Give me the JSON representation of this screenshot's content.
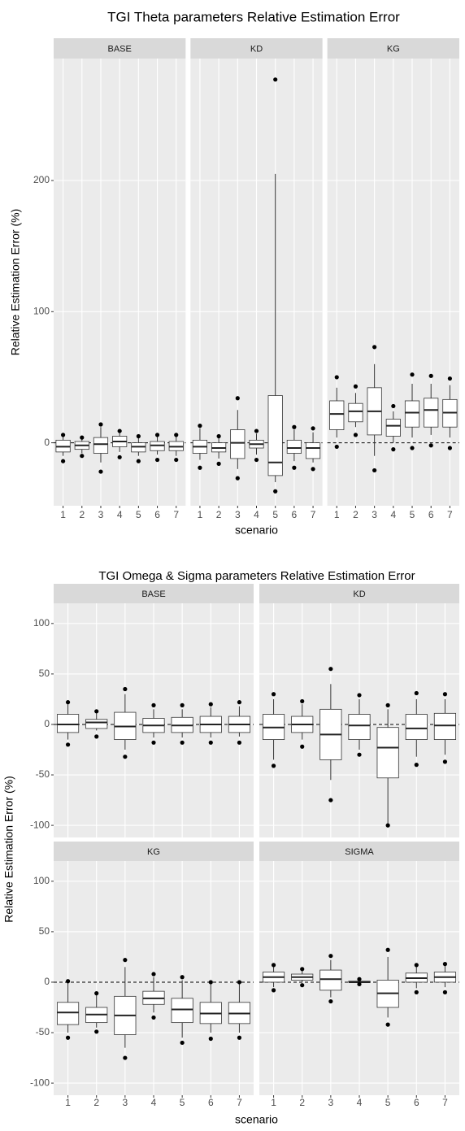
{
  "chart_data": [
    {
      "type": "boxplot",
      "title": "TGI Theta parameters Relative Estimation Error",
      "x_label": "scenario",
      "y_label": "Relative Estimation Error (%)",
      "categories": [
        "1",
        "2",
        "3",
        "4",
        "5",
        "6",
        "7"
      ],
      "ylim": [
        -48,
        293
      ],
      "yticks": [
        0,
        100,
        200
      ],
      "reference_line": 0,
      "grid": true,
      "facets": [
        {
          "name": "BASE",
          "boxes": [
            {
              "low": -10,
              "q1": -7,
              "median": -3,
              "q3": 2,
              "high": 5,
              "points": [
                -14,
                6
              ]
            },
            {
              "low": -8,
              "q1": -5,
              "median": -2,
              "q3": 1,
              "high": 3,
              "points": [
                -10,
                4
              ]
            },
            {
              "low": -15,
              "q1": -8,
              "median": -1,
              "q3": 4,
              "high": 12,
              "points": [
                -22,
                14
              ]
            },
            {
              "low": -7,
              "q1": -3,
              "median": 1,
              "q3": 5,
              "high": 8,
              "points": [
                -11,
                9
              ]
            },
            {
              "low": -10,
              "q1": -7,
              "median": -3,
              "q3": 0,
              "high": 4,
              "points": [
                -14,
                5
              ]
            },
            {
              "low": -9,
              "q1": -6,
              "median": -2,
              "q3": 1,
              "high": 5,
              "points": [
                -13,
                6
              ]
            },
            {
              "low": -10,
              "q1": -6,
              "median": -3,
              "q3": 1,
              "high": 5,
              "points": [
                -13,
                6
              ]
            }
          ]
        },
        {
          "name": "KD",
          "boxes": [
            {
              "low": -13,
              "q1": -8,
              "median": -3,
              "q3": 2,
              "high": 11,
              "points": [
                -19,
                13
              ]
            },
            {
              "low": -12,
              "q1": -7,
              "median": -4,
              "q3": 0,
              "high": 4,
              "points": [
                -16,
                5
              ]
            },
            {
              "low": -20,
              "q1": -12,
              "median": 0,
              "q3": 10,
              "high": 25,
              "points": [
                -27,
                34
              ]
            },
            {
              "low": -9,
              "q1": -4,
              "median": -1,
              "q3": 2,
              "high": 7,
              "points": [
                -13,
                9
              ]
            },
            {
              "low": -30,
              "q1": -25,
              "median": -15,
              "q3": 36,
              "high": 205,
              "points": [
                -37,
                277
              ]
            },
            {
              "low": -14,
              "q1": -8,
              "median": -4,
              "q3": 2,
              "high": 10,
              "points": [
                -19,
                12
              ]
            },
            {
              "low": -15,
              "q1": -12,
              "median": -4,
              "q3": 0,
              "high": 8,
              "points": [
                -20,
                11
              ]
            }
          ]
        },
        {
          "name": "KG",
          "boxes": [
            {
              "low": 4,
              "q1": 10,
              "median": 22,
              "q3": 32,
              "high": 42,
              "points": [
                -3,
                50
              ]
            },
            {
              "low": 12,
              "q1": 16,
              "median": 24,
              "q3": 30,
              "high": 38,
              "points": [
                6,
                43
              ]
            },
            {
              "low": -10,
              "q1": 6,
              "median": 24,
              "q3": 42,
              "high": 60,
              "points": [
                -21,
                73
              ]
            },
            {
              "low": 0,
              "q1": 5,
              "median": 13,
              "q3": 18,
              "high": 24,
              "points": [
                -5,
                28
              ]
            },
            {
              "low": 4,
              "q1": 12,
              "median": 23,
              "q3": 32,
              "high": 45,
              "points": [
                -4,
                52
              ]
            },
            {
              "low": 6,
              "q1": 12,
              "median": 25,
              "q3": 34,
              "high": 45,
              "points": [
                -2,
                51
              ]
            },
            {
              "low": 4,
              "q1": 12,
              "median": 23,
              "q3": 33,
              "high": 44,
              "points": [
                -4,
                49
              ]
            }
          ]
        }
      ]
    },
    {
      "type": "boxplot",
      "title": "TGI Omega & Sigma parameters Relative Estimation Error",
      "x_label": "scenario",
      "y_label": "Relative Estimation Error (%)",
      "categories": [
        "1",
        "2",
        "3",
        "4",
        "5",
        "6",
        "7"
      ],
      "ylim": [
        -112,
        120
      ],
      "yticks": [
        -100,
        -50,
        0,
        50,
        100
      ],
      "reference_line": 0,
      "grid": true,
      "facets": [
        {
          "name": "BASE",
          "boxes": [
            {
              "low": -15,
              "q1": -8,
              "median": 0,
              "q3": 10,
              "high": 20,
              "points": [
                -20,
                22
              ]
            },
            {
              "low": -6,
              "q1": -4,
              "median": 2,
              "q3": 5,
              "high": 12,
              "points": [
                -12,
                13
              ]
            },
            {
              "low": -25,
              "q1": -15,
              "median": -2,
              "q3": 12,
              "high": 30,
              "points": [
                -32,
                35
              ]
            },
            {
              "low": -13,
              "q1": -8,
              "median": -1,
              "q3": 6,
              "high": 15,
              "points": [
                -18,
                19
              ]
            },
            {
              "low": -13,
              "q1": -8,
              "median": -1,
              "q3": 7,
              "high": 15,
              "points": [
                -18,
                19
              ]
            },
            {
              "low": -13,
              "q1": -8,
              "median": 0,
              "q3": 8,
              "high": 17,
              "points": [
                -18,
                20
              ]
            },
            {
              "low": -12,
              "q1": -8,
              "median": 0,
              "q3": 8,
              "high": 18,
              "points": [
                -18,
                22
              ]
            }
          ]
        },
        {
          "name": "KD",
          "boxes": [
            {
              "low": -35,
              "q1": -15,
              "median": -3,
              "q3": 10,
              "high": 25,
              "points": [
                -41,
                30
              ]
            },
            {
              "low": -15,
              "q1": -8,
              "median": 0,
              "q3": 8,
              "high": 20,
              "points": [
                -22,
                23
              ]
            },
            {
              "low": -55,
              "q1": -35,
              "median": -10,
              "q3": 15,
              "high": 40,
              "points": [
                -75,
                55
              ]
            },
            {
              "low": -25,
              "q1": -15,
              "median": -1,
              "q3": 10,
              "high": 25,
              "points": [
                -30,
                29
              ]
            },
            {
              "low": -100,
              "q1": -53,
              "median": -23,
              "q3": -3,
              "high": 15,
              "points": [
                -100,
                19
              ]
            },
            {
              "low": -32,
              "q1": -15,
              "median": -4,
              "q3": 10,
              "high": 25,
              "points": [
                -40,
                31
              ]
            },
            {
              "low": -30,
              "q1": -15,
              "median": -1,
              "q3": 11,
              "high": 25,
              "points": [
                -37,
                30
              ]
            }
          ]
        },
        {
          "name": "KG",
          "boxes": [
            {
              "low": -50,
              "q1": -42,
              "median": -30,
              "q3": -20,
              "high": 0,
              "points": [
                -55,
                1
              ]
            },
            {
              "low": -45,
              "q1": -40,
              "median": -32,
              "q3": -25,
              "high": -12,
              "points": [
                -49,
                -11
              ]
            },
            {
              "low": -65,
              "q1": -52,
              "median": -33,
              "q3": -14,
              "high": 15,
              "points": [
                -75,
                22
              ]
            },
            {
              "low": -30,
              "q1": -22,
              "median": -16,
              "q3": -9,
              "high": 5,
              "points": [
                -35,
                8
              ]
            },
            {
              "low": -55,
              "q1": -40,
              "median": -27,
              "q3": -16,
              "high": 2,
              "points": [
                -60,
                5
              ]
            },
            {
              "low": -50,
              "q1": -41,
              "median": -31,
              "q3": -20,
              "high": -2,
              "points": [
                -56,
                0
              ]
            },
            {
              "low": -50,
              "q1": -41,
              "median": -31,
              "q3": -20,
              "high": -2,
              "points": [
                -55,
                0
              ]
            }
          ]
        },
        {
          "name": "SIGMA",
          "boxes": [
            {
              "low": -5,
              "q1": 0,
              "median": 5,
              "q3": 10,
              "high": 15,
              "points": [
                -8,
                17
              ]
            },
            {
              "low": 0,
              "q1": 2,
              "median": 5,
              "q3": 8,
              "high": 12,
              "points": [
                -3,
                13
              ]
            },
            {
              "low": -15,
              "q1": -8,
              "median": 3,
              "q3": 12,
              "high": 22,
              "points": [
                -19,
                26
              ]
            },
            {
              "low": -1,
              "q1": 0,
              "median": 0,
              "q3": 1,
              "high": 2,
              "points": [
                -2,
                3
              ]
            },
            {
              "low": -35,
              "q1": -25,
              "median": -11,
              "q3": 2,
              "high": 25,
              "points": [
                -42,
                32
              ]
            },
            {
              "low": -6,
              "q1": 0,
              "median": 4,
              "q3": 9,
              "high": 15,
              "points": [
                -10,
                17
              ]
            },
            {
              "low": -5,
              "q1": 0,
              "median": 5,
              "q3": 10,
              "high": 16,
              "points": [
                -10,
                18
              ]
            }
          ]
        }
      ]
    }
  ]
}
